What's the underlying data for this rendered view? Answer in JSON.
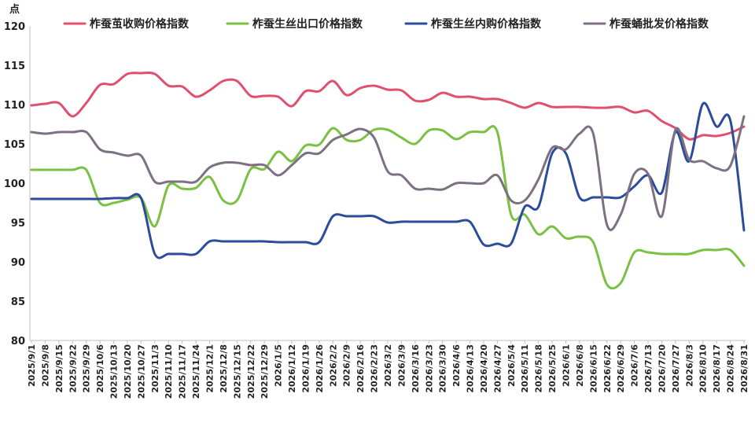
{
  "chart_data": {
    "type": "line",
    "y_unit": "点",
    "ylim": [
      80,
      120
    ],
    "yticks": [
      80,
      85,
      90,
      95,
      100,
      105,
      110,
      115,
      120
    ],
    "grid": false,
    "legend_position": "top",
    "x": [
      "2025/9/1",
      "2025/9/8",
      "2025/9/15",
      "2025/9/22",
      "2025/9/29",
      "2025/10/6",
      "2025/10/13",
      "2025/10/20",
      "2025/10/27",
      "2025/11/3",
      "2025/11/10",
      "2025/11/17",
      "2025/11/24",
      "2025/12/1",
      "2025/12/8",
      "2025/12/15",
      "2025/12/22",
      "2025/12/29",
      "2026/1/5",
      "2026/1/12",
      "2026/1/19",
      "2026/1/26",
      "2026/2/2",
      "2026/2/9",
      "2026/2/16",
      "2026/2/23",
      "2026/3/2",
      "2026/3/9",
      "2026/3/16",
      "2026/3/23",
      "2026/3/30",
      "2026/4/6",
      "2026/4/13",
      "2026/4/20",
      "2026/4/27",
      "2026/5/4",
      "2026/5/11",
      "2026/5/18",
      "2026/5/25",
      "2026/6/1",
      "2026/6/8",
      "2026/6/15",
      "2026/6/22",
      "2026/6/29",
      "2026/7/6",
      "2026/7/13",
      "2026/7/20",
      "2026/7/27",
      "2026/8/3",
      "2026/8/10",
      "2026/8/17",
      "2026/8/24",
      "2026/8/31"
    ],
    "series": [
      {
        "name": "柞蚕茧收购价格指数",
        "color": "#e0506e",
        "values": [
          109.9,
          110.1,
          110.2,
          108.5,
          110.2,
          112.5,
          112.6,
          113.9,
          114,
          113.9,
          112.4,
          112.3,
          111,
          111.8,
          113,
          113,
          111.1,
          111.1,
          111,
          109.8,
          111.7,
          111.7,
          113,
          111.2,
          112.1,
          112.4,
          111.9,
          111.8,
          110.5,
          110.6,
          111.5,
          111,
          111,
          110.7,
          110.7,
          110.2,
          109.6,
          110.2,
          109.7,
          109.7,
          109.7,
          109.6,
          109.6,
          109.7,
          109,
          109.2,
          107.9,
          107,
          105.6,
          106.1,
          106,
          106.4,
          107.2
        ]
      },
      {
        "name": "柞蚕生丝出口价格指数",
        "color": "#7ac143",
        "values": [
          101.7,
          101.7,
          101.7,
          101.7,
          101.7,
          97.5,
          97.5,
          97.9,
          98.1,
          94.5,
          99.7,
          99.3,
          99.4,
          100.8,
          97.8,
          97.8,
          101.8,
          101.8,
          104,
          102.8,
          104.8,
          104.9,
          107,
          105.5,
          105.5,
          106.8,
          106.8,
          105.8,
          105,
          106.7,
          106.7,
          105.6,
          106.5,
          106.5,
          106.5,
          96,
          96,
          93.5,
          94.5,
          93,
          93.2,
          92.5,
          87.1,
          87.3,
          91.2,
          91.2,
          91,
          91,
          91,
          91.5,
          91.5,
          91.5,
          89.5
        ]
      },
      {
        "name": "柞蚕生丝内购价格指数",
        "color": "#2b4c9b",
        "values": [
          98,
          98,
          98,
          98,
          98,
          98,
          98.1,
          98.1,
          98.1,
          91,
          91,
          91,
          91,
          92.6,
          92.6,
          92.6,
          92.6,
          92.6,
          92.5,
          92.5,
          92.5,
          92.5,
          95.8,
          95.8,
          95.8,
          95.8,
          95,
          95.1,
          95.1,
          95.1,
          95.1,
          95.1,
          95.1,
          92.2,
          92.3,
          92.3,
          97,
          97,
          103.8,
          103.8,
          98.2,
          98.2,
          98.2,
          98.2,
          99.6,
          101,
          98.8,
          106.5,
          102.8,
          110.1,
          107.2,
          108,
          94
        ]
      },
      {
        "name": "柞蚕蛹批发价格指数",
        "color": "#7d7082",
        "values": [
          106.5,
          106.3,
          106.5,
          106.5,
          106.5,
          104.3,
          103.9,
          103.5,
          103.5,
          100.2,
          100.2,
          100.2,
          100.2,
          102,
          102.6,
          102.6,
          102.3,
          102.3,
          101,
          102.3,
          103.8,
          103.8,
          105.5,
          106.2,
          106.9,
          105.8,
          101.5,
          101,
          99.3,
          99.3,
          99.2,
          100,
          100,
          100,
          101,
          97.8,
          97.8,
          100.5,
          104.5,
          104.3,
          106.3,
          106.3,
          94.7,
          96,
          101.2,
          101.2,
          95.8,
          106.8,
          103,
          102.8,
          101.9,
          102.2,
          108.5
        ]
      }
    ]
  }
}
